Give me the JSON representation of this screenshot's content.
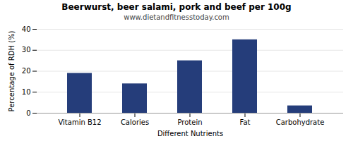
{
  "chart_data": {
    "type": "bar",
    "title": "Beerwurst, beer salami, pork and beef per 100g",
    "subtitle": "www.dietandfitnesstoday.com",
    "xlabel": "Different Nutrients",
    "ylabel": "Percentage of RDH (%)",
    "categories": [
      "Vitamin B12",
      "Calories",
      "Protein",
      "Fat",
      "Carbohydrate"
    ],
    "values": [
      19,
      14,
      25,
      35,
      3.5
    ],
    "color": "#253d7a",
    "ylim": [
      0,
      40
    ],
    "yticks": [
      0,
      10,
      20,
      30,
      40
    ],
    "grid": true
  }
}
